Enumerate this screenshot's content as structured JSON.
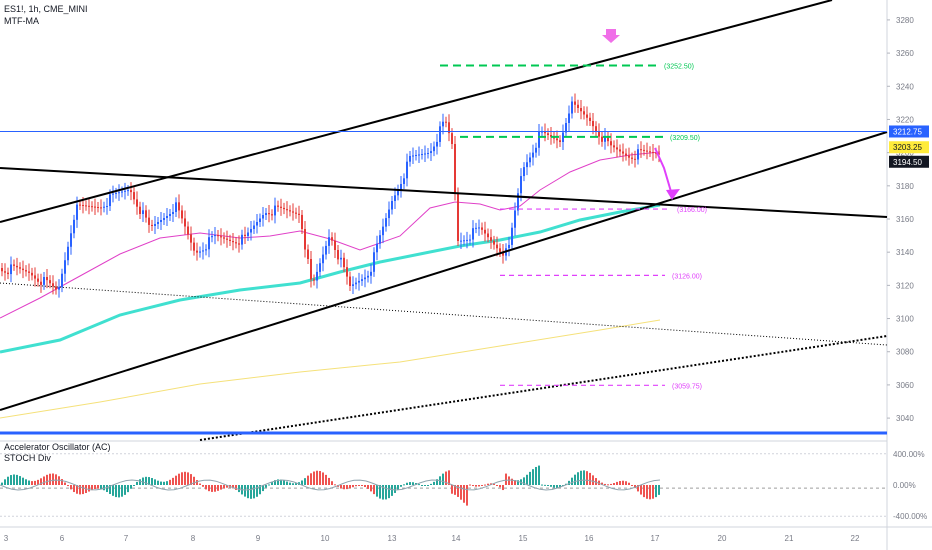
{
  "header": {
    "symbol": "ES1!, 1h, CME_MINI",
    "indicator": "MTF-MA"
  },
  "lower_pane": {
    "title": "Accelerator Oscillator (AC)",
    "subtitle": "STOCH Div",
    "y_ticks": [
      "400.00%",
      "0.00%",
      "-400.00%"
    ],
    "y_values": [
      400,
      0,
      -400
    ]
  },
  "colors": {
    "up": "#26a69a",
    "down": "#ef5350",
    "candle_up": "#2962ff",
    "candle_down": "#e53935",
    "ma_cyan": "#40e0d0",
    "ma_pink": "#e040c8",
    "ma_yellow": "#f5e17a",
    "horizontal_blue": "#2962ff",
    "annotation_magenta": "#e040fb",
    "annotation_green": "#00c853",
    "price_badge_blue": "#2962ff",
    "price_badge_yellow": "#ffeb3b",
    "price_badge_black": "#131722"
  },
  "chart_data": {
    "type": "candlestick",
    "x_ticks": [
      "3",
      "6",
      "7",
      "8",
      "9",
      "10",
      "13",
      "14",
      "15",
      "16",
      "17",
      "20",
      "21",
      "22"
    ],
    "y_ticks": [
      3040,
      3060,
      3080,
      3100,
      3120,
      3140,
      3160,
      3180,
      3200,
      3220,
      3240,
      3260,
      3280
    ],
    "ylim": [
      3028,
      3292
    ],
    "price_badges": [
      {
        "label": "3212.75",
        "value": 3212.75,
        "style": "blue"
      },
      {
        "label": "3203.25",
        "value": 3203.25,
        "style": "yellow"
      },
      {
        "label": "3194.50",
        "value": 3194.5,
        "style": "black"
      }
    ],
    "levels": [
      {
        "label": "(3252.50)",
        "value": 3252.5,
        "color": "green"
      },
      {
        "label": "(3209.50)",
        "value": 3209.5,
        "color": "green"
      },
      {
        "label": "(3166.00)",
        "value": 3166,
        "color": "magenta"
      },
      {
        "label": "(3126.00)",
        "value": 3126,
        "color": "magenta"
      },
      {
        "label": "(3059.75)",
        "value": 3059.75,
        "color": "magenta"
      }
    ],
    "horizontal_lines": [
      3212.75,
      3031
    ]
  }
}
